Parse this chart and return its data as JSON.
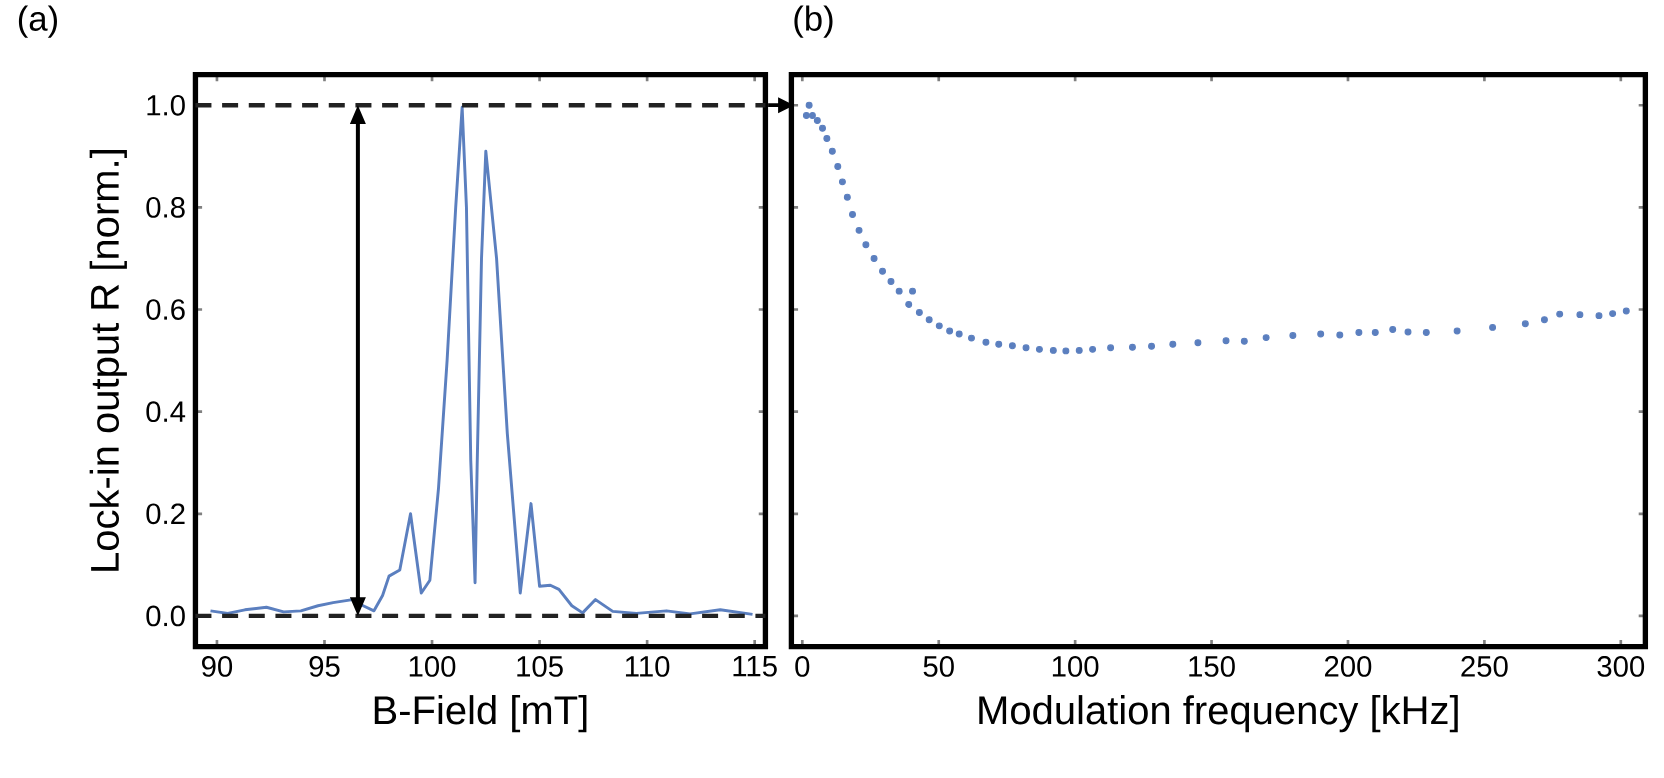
{
  "chart_data": [
    {
      "type": "line",
      "title": "(a)",
      "xlabel": "B-Field [mT]",
      "ylabel": "Lock-in output R [norm.]",
      "color": "#5b7fbf",
      "line_style": "solid",
      "xlim": [
        89,
        115.5
      ],
      "ylim": [
        -0.06,
        1.06
      ],
      "xticks": [
        90,
        95,
        100,
        105,
        110,
        115
      ],
      "yticks": [
        {
          "value": 0,
          "label": "0.0"
        },
        {
          "value": 0.2,
          "label": "0.2"
        },
        {
          "value": 0.4,
          "label": "0.4"
        },
        {
          "value": 0.6,
          "label": "0.6"
        },
        {
          "value": 0.8,
          "label": "0.8"
        },
        {
          "value": 1,
          "label": "1.0"
        }
      ],
      "x": [
        89.7,
        90.5,
        91.3,
        92.3,
        93.1,
        93.9,
        94.7,
        95.4,
        96.3,
        96.8,
        97.3,
        97.7,
        98.0,
        98.5,
        99.0,
        99.5,
        99.9,
        100.3,
        100.7,
        101.1,
        101.4,
        101.6,
        101.8,
        102.0,
        102.1,
        102.3,
        102.5,
        103.0,
        103.5,
        104.1,
        104.6,
        105.0,
        105.5,
        105.9,
        106.5,
        107.0,
        107.6,
        108.4,
        109.5,
        110.9,
        112.0,
        113.4,
        114.9
      ],
      "values": [
        0.01,
        0.005,
        0.012,
        0.017,
        0.008,
        0.01,
        0.02,
        0.026,
        0.032,
        0.02,
        0.01,
        0.04,
        0.078,
        0.09,
        0.2,
        0.045,
        0.07,
        0.25,
        0.5,
        0.8,
        0.996,
        0.8,
        0.305,
        0.065,
        0.3,
        0.7,
        0.91,
        0.7,
        0.357,
        0.045,
        0.22,
        0.058,
        0.06,
        0.052,
        0.02,
        0.006,
        0.032,
        0.009,
        0.005,
        0.01,
        0.004,
        0.012,
        0.003
      ],
      "ref_lines": [
        {
          "axis": "y",
          "value": 1,
          "color": "#222222",
          "line_style": "dashed"
        },
        {
          "axis": "y",
          "value": 0,
          "color": "#222222",
          "line_style": "dashed"
        }
      ]
    },
    {
      "type": "scatter",
      "title": "(b)",
      "xlabel": "Modulation frequency [kHz]",
      "color": "#5b7fbf",
      "marker": "circle",
      "tick_labels": "x",
      "xlim": [
        -4,
        309
      ],
      "ylim": [
        -0.06,
        1.06
      ],
      "xticks": [
        0,
        50,
        100,
        150,
        200,
        250,
        300
      ],
      "yticks": [
        {
          "value": 0,
          "label": null
        },
        {
          "value": 0.2,
          "label": null
        },
        {
          "value": 0.4,
          "label": null
        },
        {
          "value": 0.6,
          "label": null
        },
        {
          "value": 0.8,
          "label": null
        },
        {
          "value": 1,
          "label": null
        }
      ],
      "x": [
        1.5,
        2.5,
        3.7,
        5.5,
        7.4,
        9.0,
        11,
        13,
        14.7,
        16.5,
        18.4,
        20.8,
        23.3,
        26.3,
        29.4,
        32.5,
        35.5,
        39.0,
        40.4,
        42.9,
        46.5,
        50.2,
        54.0,
        57.5,
        62.0,
        67.3,
        72.0,
        77,
        82.0,
        86.9,
        92.0,
        96.6,
        101.5,
        106.4,
        113.0,
        121,
        128.0,
        135.8,
        145.0,
        155.3,
        162.0,
        170.0,
        179.8,
        190.0,
        197.0,
        204,
        210.0,
        216.4,
        222.0,
        228.7,
        240.0,
        253,
        265.0,
        272.0,
        277.6,
        285.0,
        292.0,
        297.0,
        302
      ],
      "values": [
        0.98,
        1.0,
        0.98,
        0.97,
        0.955,
        0.935,
        0.91,
        0.88,
        0.85,
        0.82,
        0.786,
        0.755,
        0.727,
        0.7,
        0.675,
        0.655,
        0.636,
        0.61,
        0.636,
        0.594,
        0.58,
        0.568,
        0.558,
        0.552,
        0.544,
        0.536,
        0.532,
        0.529,
        0.525,
        0.522,
        0.52,
        0.519,
        0.52,
        0.522,
        0.525,
        0.526,
        0.528,
        0.532,
        0.535,
        0.539,
        0.538,
        0.545,
        0.549,
        0.552,
        0.55,
        0.555,
        0.555,
        0.561,
        0.556,
        0.555,
        0.558,
        0.565,
        0.572,
        0.58,
        0.591,
        0.59,
        0.588,
        0.592,
        0.597
      ]
    }
  ]
}
